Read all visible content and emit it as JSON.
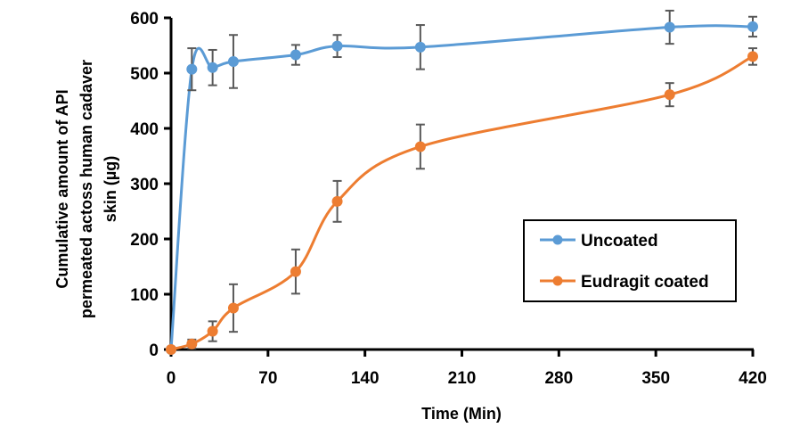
{
  "chart_data": {
    "type": "line",
    "title": "",
    "xlabel": "Time (Min)",
    "ylabel_lines": [
      "Cumulative amount of API",
      "permeated actoss human cadaver",
      "skin (µg)"
    ],
    "ylabel": "Cumulative amount of API permeated actoss human cadaver skin (µg)",
    "xlim": [
      0,
      420
    ],
    "ylim": [
      0,
      600
    ],
    "x_ticks": [
      0,
      70,
      140,
      210,
      280,
      350,
      420
    ],
    "y_ticks": [
      0,
      100,
      200,
      300,
      400,
      500,
      600
    ],
    "grid": false,
    "legend_position": "center-right",
    "x": [
      0,
      15,
      30,
      45,
      90,
      120,
      180,
      360,
      420
    ],
    "series": [
      {
        "name": "Uncoated",
        "color": "#5b9bd5",
        "values": [
          0,
          507,
          510,
          521,
          533,
          549,
          547,
          583,
          584
        ],
        "errors": [
          0,
          38,
          32,
          48,
          18,
          20,
          40,
          30,
          18
        ]
      },
      {
        "name": "Eudragit coated",
        "color": "#ed7d31",
        "values": [
          0,
          10,
          33,
          75,
          141,
          268,
          367,
          461,
          530
        ],
        "errors": [
          0,
          8,
          18,
          43,
          40,
          37,
          40,
          21,
          15
        ]
      }
    ],
    "error_bar_color": "#595959"
  }
}
